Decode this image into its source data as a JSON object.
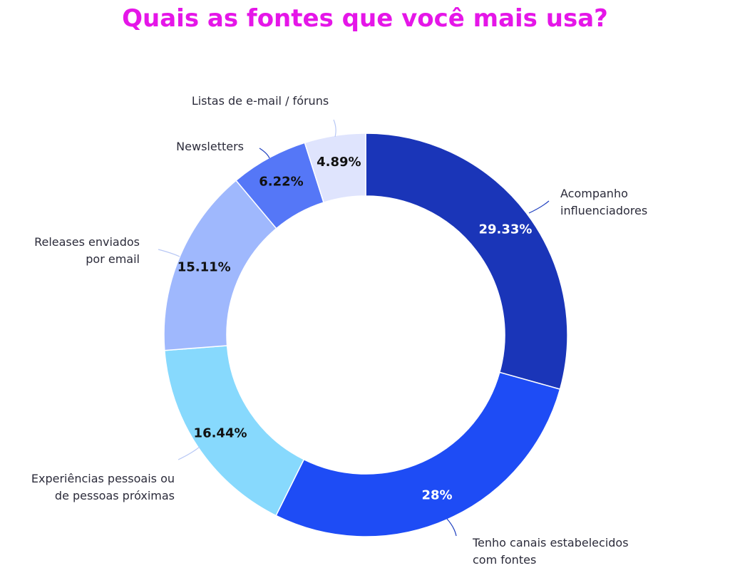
{
  "chart_data": {
    "type": "pie",
    "title": "Quais as fontes que você mais usa?",
    "categories": [
      "Acompanho influenciadores",
      "Tenho canais estabelecidos com fontes",
      "Experiências pessoais ou de pessoas próximas",
      "Releases enviados por email",
      "Newsletters",
      "Listas de e-mail / fóruns"
    ],
    "category_lines": [
      [
        "Acompanho",
        "influenciadores"
      ],
      [
        "Tenho canais estabelecidos",
        "com fontes"
      ],
      [
        "Experiências pessoais ou",
        "de pessoas próximas"
      ],
      [
        "Releases enviados",
        "por email"
      ],
      [
        "Newsletters"
      ],
      [
        "Listas de e-mail / fóruns"
      ]
    ],
    "values": [
      29.33,
      28,
      16.44,
      15.11,
      6.22,
      4.89
    ],
    "value_labels": [
      "29.33%",
      "28%",
      "16.44%",
      "15.11%",
      "6.22%",
      "4.89%"
    ],
    "colors": [
      "#1a35b8",
      "#1e4cf5",
      "#87d9fd",
      "#9fb8fd",
      "#5577f7",
      "#dfe4fd"
    ],
    "value_label_colors": [
      "#ffffff",
      "#ffffff",
      "#111111",
      "#111111",
      "#111111",
      "#111111"
    ],
    "title_color": "#e516e8",
    "start": "top",
    "direction": "clockwise",
    "donut": true
  }
}
